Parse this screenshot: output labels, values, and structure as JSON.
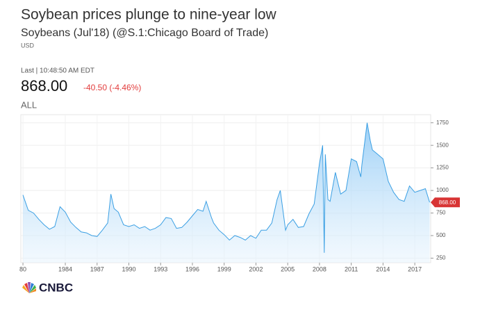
{
  "header": {
    "title": "Soybean prices plunge to nine-year low",
    "subtitle": "Soybeans (Jul'18) (@S.1:Chicago Board of Trade)",
    "currency": "USD",
    "last_time": "Last | 10:48:50 AM EDT",
    "price": "868.00",
    "change": "-40.50 (-4.46%)",
    "range": "ALL"
  },
  "logo": "CNBC",
  "chart_data": {
    "type": "area",
    "x": [
      1980,
      1980.5,
      1981,
      1981.5,
      1982,
      1982.5,
      1983,
      1983.5,
      1984,
      1984.5,
      1985,
      1985.5,
      1986,
      1986.5,
      1987,
      1987.5,
      1988,
      1988.3,
      1988.6,
      1989,
      1989.5,
      1990,
      1990.5,
      1991,
      1991.5,
      1992,
      1992.5,
      1993,
      1993.5,
      1994,
      1994.5,
      1995,
      1995.5,
      1996,
      1996.5,
      1997,
      1997.3,
      1997.8,
      1998,
      1998.5,
      1999,
      1999.5,
      2000,
      2000.5,
      2001,
      2001.5,
      2002,
      2002.5,
      2003,
      2003.5,
      2004,
      2004.3,
      2004.8,
      2005,
      2005.5,
      2006,
      2006.5,
      2007,
      2007.5,
      2008,
      2008.3,
      2008.45,
      2008.55,
      2008.8,
      2009,
      2009.5,
      2010,
      2010.5,
      2011,
      2011.5,
      2011.9,
      2012,
      2012.5,
      2012.8,
      2013,
      2013.5,
      2014,
      2014.5,
      2015,
      2015.5,
      2016,
      2016.5,
      2017,
      2017.5,
      2018,
      2018.4
    ],
    "series": [
      {
        "name": "Soybeans",
        "color": "#3a9fe3",
        "values": [
          950,
          780,
          750,
          680,
          620,
          570,
          600,
          820,
          760,
          650,
          590,
          540,
          530,
          500,
          490,
          560,
          640,
          960,
          800,
          760,
          620,
          600,
          620,
          580,
          600,
          560,
          580,
          620,
          700,
          690,
          580,
          590,
          650,
          720,
          790,
          770,
          880,
          700,
          640,
          560,
          510,
          450,
          500,
          480,
          450,
          500,
          470,
          560,
          560,
          640,
          900,
          1000,
          560,
          620,
          680,
          590,
          600,
          740,
          850,
          1300,
          1500,
          310,
          1400,
          900,
          880,
          1200,
          960,
          1000,
          1350,
          1320,
          1150,
          1280,
          1750,
          1550,
          1450,
          1400,
          1350,
          1100,
          980,
          900,
          880,
          1050,
          980,
          1000,
          1020,
          868
        ]
      }
    ],
    "xlim": [
      1979.8,
      2018.5
    ],
    "xticks": [
      {
        "value": 1980,
        "label": "80"
      },
      1984,
      1987,
      1990,
      1993,
      1996,
      1999,
      2002,
      2005,
      2008,
      2011,
      2014,
      2017
    ],
    "ylim": [
      200,
      1840
    ],
    "yticks": [
      250,
      500,
      750,
      1000,
      1250,
      1500,
      1750
    ],
    "grid": true
  }
}
